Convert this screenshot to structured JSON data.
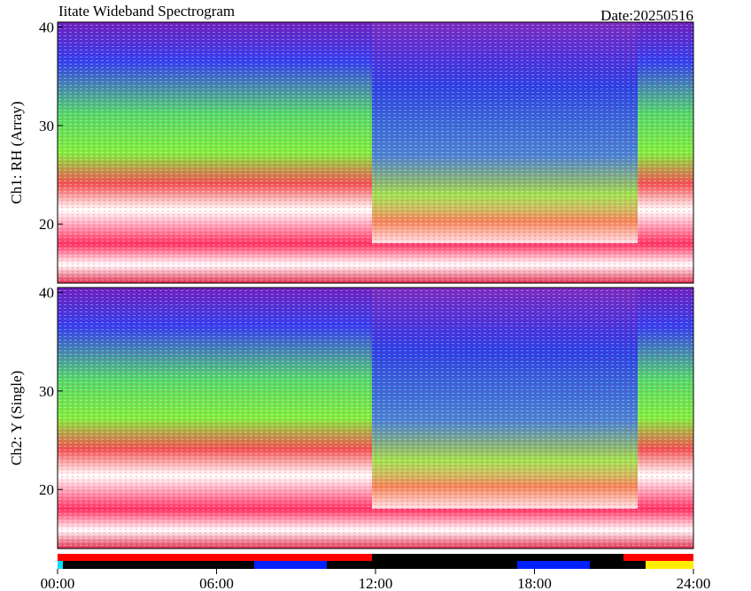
{
  "chart_data": [
    {
      "type": "spectrogram",
      "title": "Iitate Wideband Spectrogram",
      "subtitle": "Date:20250516",
      "ylabel": "Ch1: RH (Array)",
      "ylim": [
        14,
        40.5
      ],
      "yticks": [
        20,
        30,
        40
      ],
      "xlim": [
        0,
        24
      ]
    },
    {
      "type": "spectrogram",
      "ylabel": "Ch2: Y (Single)",
      "ylim": [
        14,
        40.5
      ],
      "yticks": [
        20,
        30,
        40
      ],
      "xlim": [
        0,
        24
      ],
      "xticks": [
        {
          "value": 0,
          "label": "00:00"
        },
        {
          "value": 6,
          "label": "06:00"
        },
        {
          "value": 12,
          "label": "12:00"
        },
        {
          "value": 18,
          "label": "18:00"
        },
        {
          "value": 24,
          "label": "24:00"
        }
      ]
    }
  ]
}
